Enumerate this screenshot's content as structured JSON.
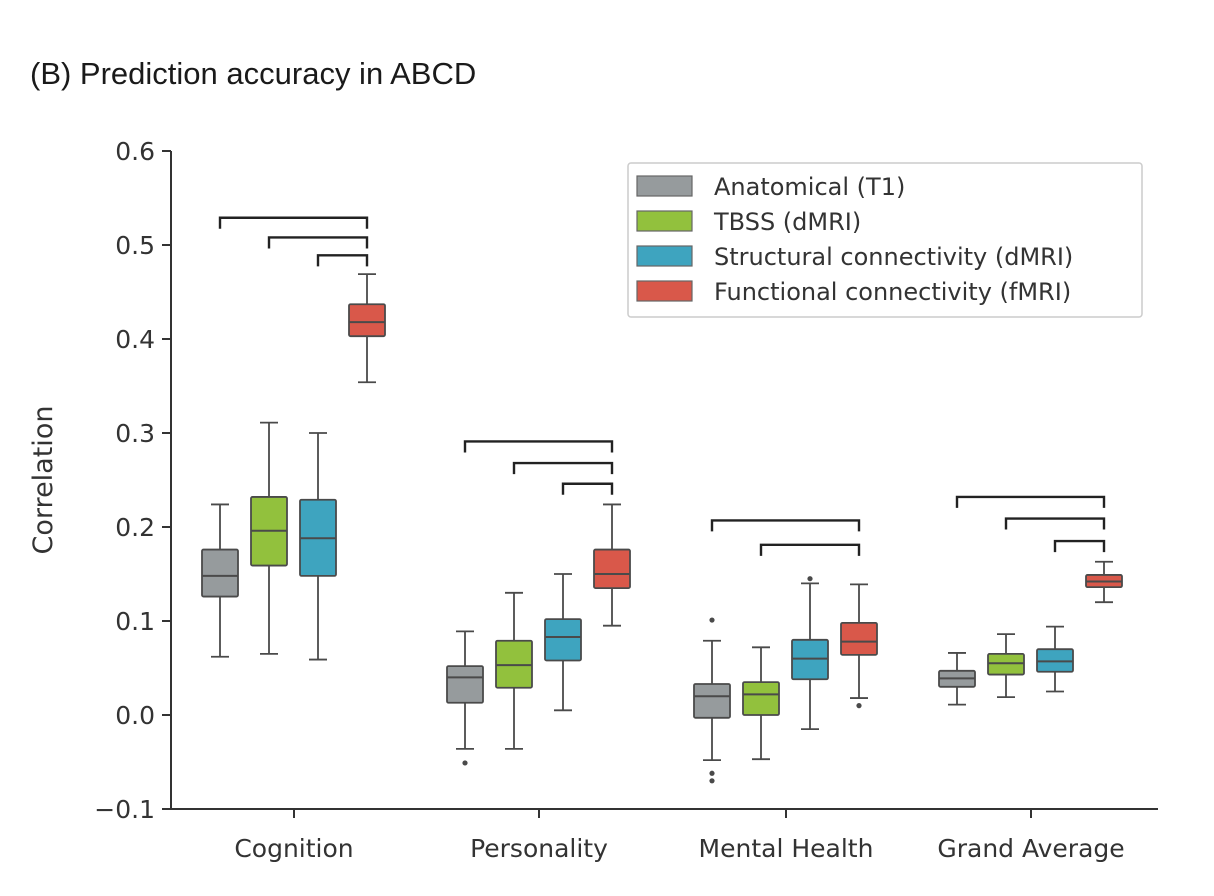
{
  "title": "(B) Prediction accuracy in ABCD",
  "chart_data": {
    "type": "boxplot",
    "title": "(B) Prediction accuracy in ABCD",
    "xlabel": "",
    "ylabel": "Correlation",
    "ylim": [
      -0.1,
      0.6
    ],
    "yticks": [
      -0.1,
      0.0,
      0.1,
      0.2,
      0.3,
      0.4,
      0.5,
      0.6
    ],
    "ytick_labels": [
      "−0.1",
      "0.0",
      "0.1",
      "0.2",
      "0.3",
      "0.4",
      "0.5",
      "0.6"
    ],
    "grid": false,
    "legend_position": "top-right",
    "categories": [
      "Cognition",
      "Personality",
      "Mental Health",
      "Grand Average"
    ],
    "series": [
      {
        "name": "Anatomical (T1)",
        "color": "#969b9d",
        "boxes": [
          {
            "whislo": 0.062,
            "q1": 0.126,
            "med": 0.148,
            "q3": 0.176,
            "whishi": 0.224,
            "fliers": []
          },
          {
            "whislo": -0.036,
            "q1": 0.013,
            "med": 0.04,
            "q3": 0.052,
            "whishi": 0.089,
            "fliers": [
              -0.051
            ]
          },
          {
            "whislo": -0.048,
            "q1": -0.003,
            "med": 0.02,
            "q3": 0.033,
            "whishi": 0.079,
            "fliers": [
              0.101,
              -0.062,
              -0.07
            ]
          },
          {
            "whislo": 0.011,
            "q1": 0.03,
            "med": 0.039,
            "q3": 0.047,
            "whishi": 0.066,
            "fliers": []
          }
        ]
      },
      {
        "name": "TBSS (dMRI)",
        "color": "#92c13d",
        "boxes": [
          {
            "whislo": 0.065,
            "q1": 0.159,
            "med": 0.196,
            "q3": 0.232,
            "whishi": 0.311,
            "fliers": []
          },
          {
            "whislo": -0.036,
            "q1": 0.029,
            "med": 0.053,
            "q3": 0.079,
            "whishi": 0.13,
            "fliers": []
          },
          {
            "whislo": -0.047,
            "q1": 0.0,
            "med": 0.022,
            "q3": 0.035,
            "whishi": 0.072,
            "fliers": []
          },
          {
            "whislo": 0.019,
            "q1": 0.043,
            "med": 0.055,
            "q3": 0.065,
            "whishi": 0.086,
            "fliers": []
          }
        ]
      },
      {
        "name": "Structural connectivity (dMRI)",
        "color": "#3ea4bf",
        "boxes": [
          {
            "whislo": 0.059,
            "q1": 0.148,
            "med": 0.188,
            "q3": 0.229,
            "whishi": 0.3,
            "fliers": []
          },
          {
            "whislo": 0.005,
            "q1": 0.058,
            "med": 0.083,
            "q3": 0.102,
            "whishi": 0.15,
            "fliers": []
          },
          {
            "whislo": -0.015,
            "q1": 0.038,
            "med": 0.06,
            "q3": 0.08,
            "whishi": 0.14,
            "fliers": [
              0.145
            ]
          },
          {
            "whislo": 0.025,
            "q1": 0.046,
            "med": 0.057,
            "q3": 0.07,
            "whishi": 0.094,
            "fliers": []
          }
        ]
      },
      {
        "name": "Functional connectivity (fMRI)",
        "color": "#d9584a",
        "boxes": [
          {
            "whislo": 0.354,
            "q1": 0.403,
            "med": 0.418,
            "q3": 0.437,
            "whishi": 0.469,
            "fliers": []
          },
          {
            "whislo": 0.095,
            "q1": 0.135,
            "med": 0.15,
            "q3": 0.176,
            "whishi": 0.224,
            "fliers": []
          },
          {
            "whislo": 0.018,
            "q1": 0.064,
            "med": 0.078,
            "q3": 0.098,
            "whishi": 0.139,
            "fliers": [
              0.01
            ]
          },
          {
            "whislo": 0.12,
            "q1": 0.136,
            "med": 0.142,
            "q3": 0.149,
            "whishi": 0.163,
            "fliers": []
          }
        ]
      }
    ],
    "significance_brackets": [
      {
        "category": 0,
        "from_series": 0,
        "to_series": 3,
        "y": 0.529
      },
      {
        "category": 0,
        "from_series": 1,
        "to_series": 3,
        "y": 0.508
      },
      {
        "category": 0,
        "from_series": 2,
        "to_series": 3,
        "y": 0.489
      },
      {
        "category": 1,
        "from_series": 0,
        "to_series": 3,
        "y": 0.291
      },
      {
        "category": 1,
        "from_series": 1,
        "to_series": 3,
        "y": 0.268
      },
      {
        "category": 1,
        "from_series": 2,
        "to_series": 3,
        "y": 0.246
      },
      {
        "category": 2,
        "from_series": 0,
        "to_series": 3,
        "y": 0.207
      },
      {
        "category": 2,
        "from_series": 1,
        "to_series": 3,
        "y": 0.181
      },
      {
        "category": 3,
        "from_series": 0,
        "to_series": 3,
        "y": 0.232
      },
      {
        "category": 3,
        "from_series": 1,
        "to_series": 3,
        "y": 0.209
      },
      {
        "category": 3,
        "from_series": 2,
        "to_series": 3,
        "y": 0.185
      }
    ]
  }
}
